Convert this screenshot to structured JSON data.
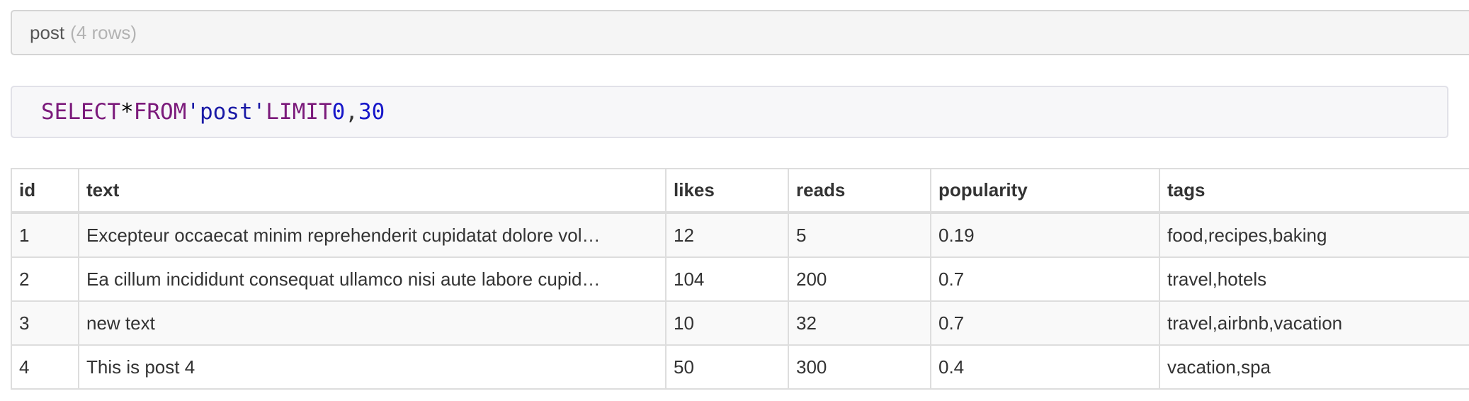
{
  "header": {
    "table_name": "post",
    "row_count": "(4 rows)"
  },
  "query": {
    "select_kw": "SELECT",
    "star": "*",
    "from_kw": "FROM",
    "table_literal": "'post'",
    "limit_kw": "LIMIT",
    "offset": "0",
    "comma": ",",
    "limit": "30"
  },
  "results": {
    "columns": [
      "id",
      "text",
      "likes",
      "reads",
      "popularity",
      "tags"
    ],
    "rows": [
      [
        "1",
        "Excepteur occaecat minim reprehenderit cupidatat dolore vol…",
        "12",
        "5",
        "0.19",
        "food,recipes,baking"
      ],
      [
        "2",
        "Ea cillum incididunt consequat ullamco nisi aute labore cupid…",
        "104",
        "200",
        "0.7",
        "travel,hotels"
      ],
      [
        "3",
        "new text",
        "10",
        "32",
        "0.7",
        "travel,airbnb,vacation"
      ],
      [
        "4",
        "This is post 4",
        "50",
        "300",
        "0.4",
        "vacation,spa"
      ]
    ]
  }
}
